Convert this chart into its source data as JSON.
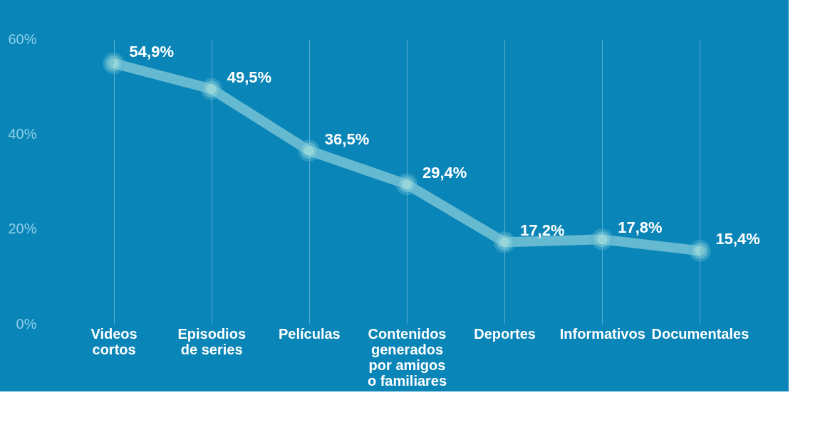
{
  "chart_data": {
    "type": "line",
    "categories": [
      "Videos\ncortos",
      "Episodios\nde series",
      "Películas",
      "Contenidos\ngenerados\npor amigos\no familiares",
      "Deportes",
      "Informativos",
      "Documentales"
    ],
    "series": [
      {
        "color": "#7cc6d6",
        "values": [
          54.9,
          49.5,
          36.5,
          29.4,
          17.2,
          17.8,
          15.4
        ],
        "value_labels": [
          "54,9%",
          "49,5%",
          "36,5%",
          "29,4%",
          "17,2%",
          "17,8%",
          "15,4%"
        ]
      }
    ],
    "ylim": [
      0,
      60
    ],
    "yticks": [
      {
        "value": 0,
        "label": "0%"
      },
      {
        "value": 20,
        "label": "20%"
      },
      {
        "value": 40,
        "label": "40%"
      },
      {
        "value": 60,
        "label": "60%"
      }
    ],
    "grid": "x",
    "marker": "circle",
    "line_style": "solid"
  }
}
